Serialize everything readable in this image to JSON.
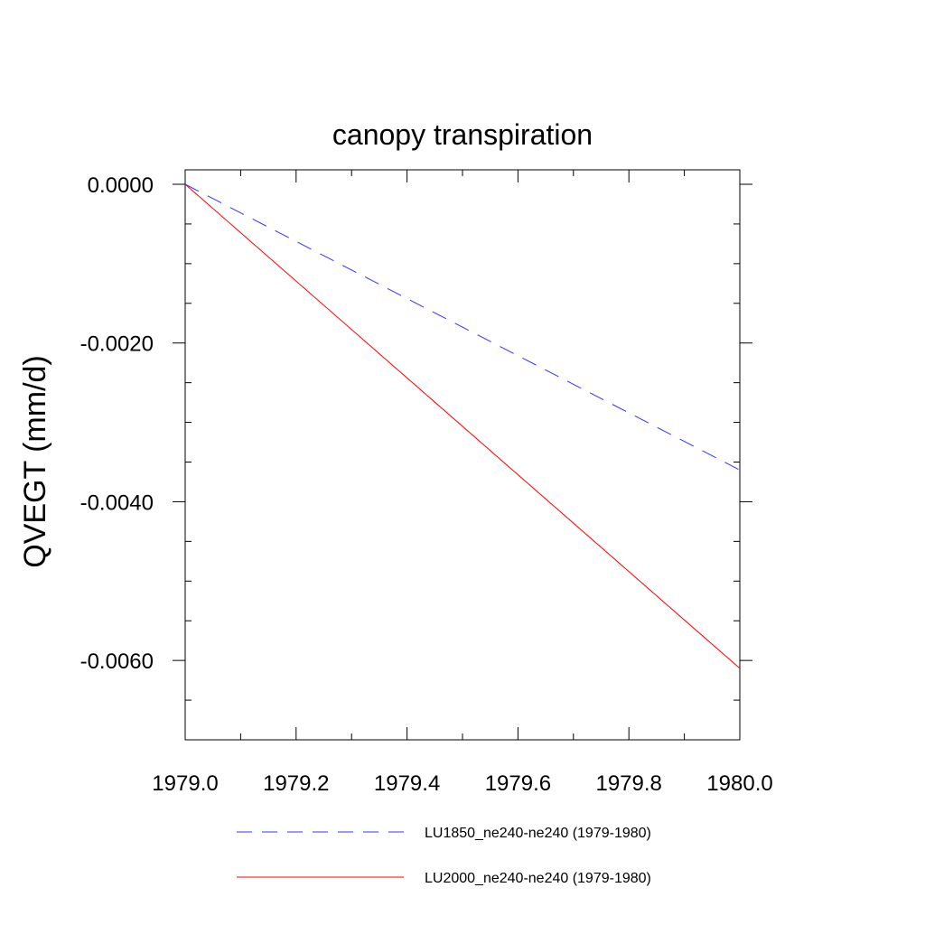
{
  "chart_data": {
    "type": "line",
    "title": "canopy transpiration",
    "xlabel": "",
    "ylabel": "QVEGT  (mm/d)",
    "xlim": [
      1979.0,
      1980.0
    ],
    "ylim": [
      -0.007,
      0.0
    ],
    "xticks": [
      1979.0,
      1979.2,
      1979.4,
      1979.6,
      1979.8,
      1980.0
    ],
    "xtick_labels": [
      "1979.0",
      "1979.2",
      "1979.4",
      "1979.6",
      "1979.8",
      "1980.0"
    ],
    "yticks": [
      0.0,
      -0.002,
      -0.004,
      -0.006
    ],
    "ytick_labels": [
      "0.0000",
      "-0.0020",
      "-0.0040",
      "-0.0060"
    ],
    "grid": false,
    "legend_placement": "bottom",
    "series": [
      {
        "name": "LU1850_ne240-ne240 (1979-1980)",
        "color": "#3333ff",
        "line_style": "dashed",
        "x": [
          1979.0,
          1980.0
        ],
        "y": [
          0.0,
          -0.0036
        ]
      },
      {
        "name": "LU2000_ne240-ne240 (1979-1980)",
        "color": "#ff0000",
        "line_style": "solid",
        "x": [
          1979.0,
          1980.0
        ],
        "y": [
          0.0,
          -0.0061
        ]
      }
    ]
  }
}
